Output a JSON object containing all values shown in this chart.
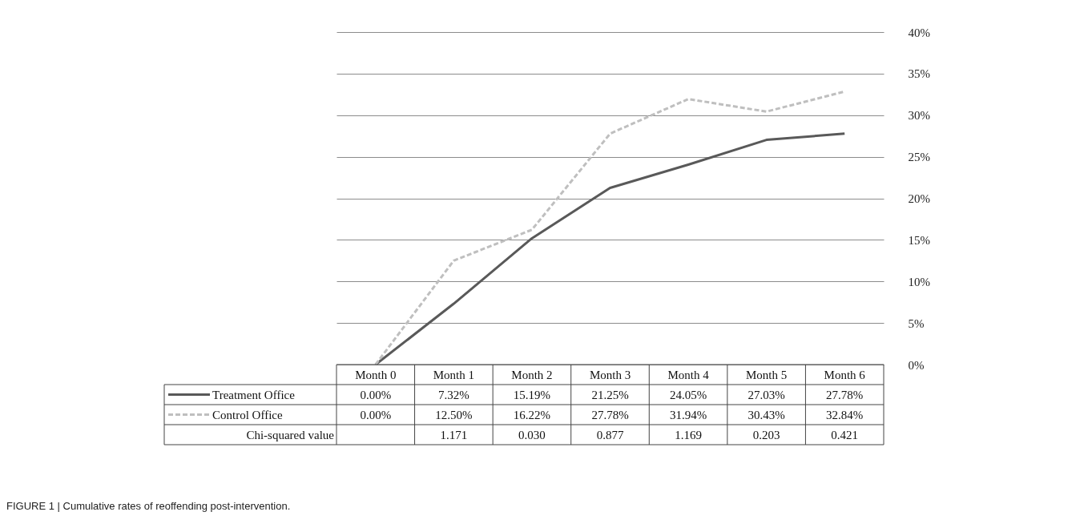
{
  "chart_data": {
    "type": "line",
    "title": "FIGURE 1 | Cumulative rates of reoffending post-intervention.",
    "categories": [
      "Month 0",
      "Month 1",
      "Month 2",
      "Month 3",
      "Month 4",
      "Month 5",
      "Month 6"
    ],
    "series": [
      {
        "name": "Treatment Office",
        "color": "#595959",
        "line_style": "solid",
        "values": [
          0.0,
          7.32,
          15.19,
          21.25,
          24.05,
          27.03,
          27.78
        ],
        "value_labels": [
          "0.00%",
          "7.32%",
          "15.19%",
          "21.25%",
          "24.05%",
          "27.03%",
          "27.78%"
        ]
      },
      {
        "name": "Control Office",
        "color": "#bfbfbf",
        "line_style": "dashed",
        "values": [
          0.0,
          12.5,
          16.22,
          27.78,
          31.94,
          30.43,
          32.84
        ],
        "value_labels": [
          "0.00%",
          "12.50%",
          "16.22%",
          "27.78%",
          "31.94%",
          "30.43%",
          "32.84%"
        ]
      }
    ],
    "annotations": [
      "Chi-squared value",
      "1.171",
      "0.030",
      "0.877",
      "1.169",
      "0.203",
      "0.421"
    ],
    "ylim": [
      0,
      40
    ],
    "yticks": [
      {
        "value": 0,
        "label": "0%"
      },
      {
        "value": 5,
        "label": "5%"
      },
      {
        "value": 10,
        "label": "10%"
      },
      {
        "value": 15,
        "label": "15%"
      },
      {
        "value": 20,
        "label": "20%"
      },
      {
        "value": 25,
        "label": "25%"
      },
      {
        "value": 30,
        "label": "30%"
      },
      {
        "value": 35,
        "label": "35%"
      },
      {
        "value": 40,
        "label": "40%"
      }
    ],
    "grid": "y",
    "legend": "bottom",
    "marker": "none"
  }
}
